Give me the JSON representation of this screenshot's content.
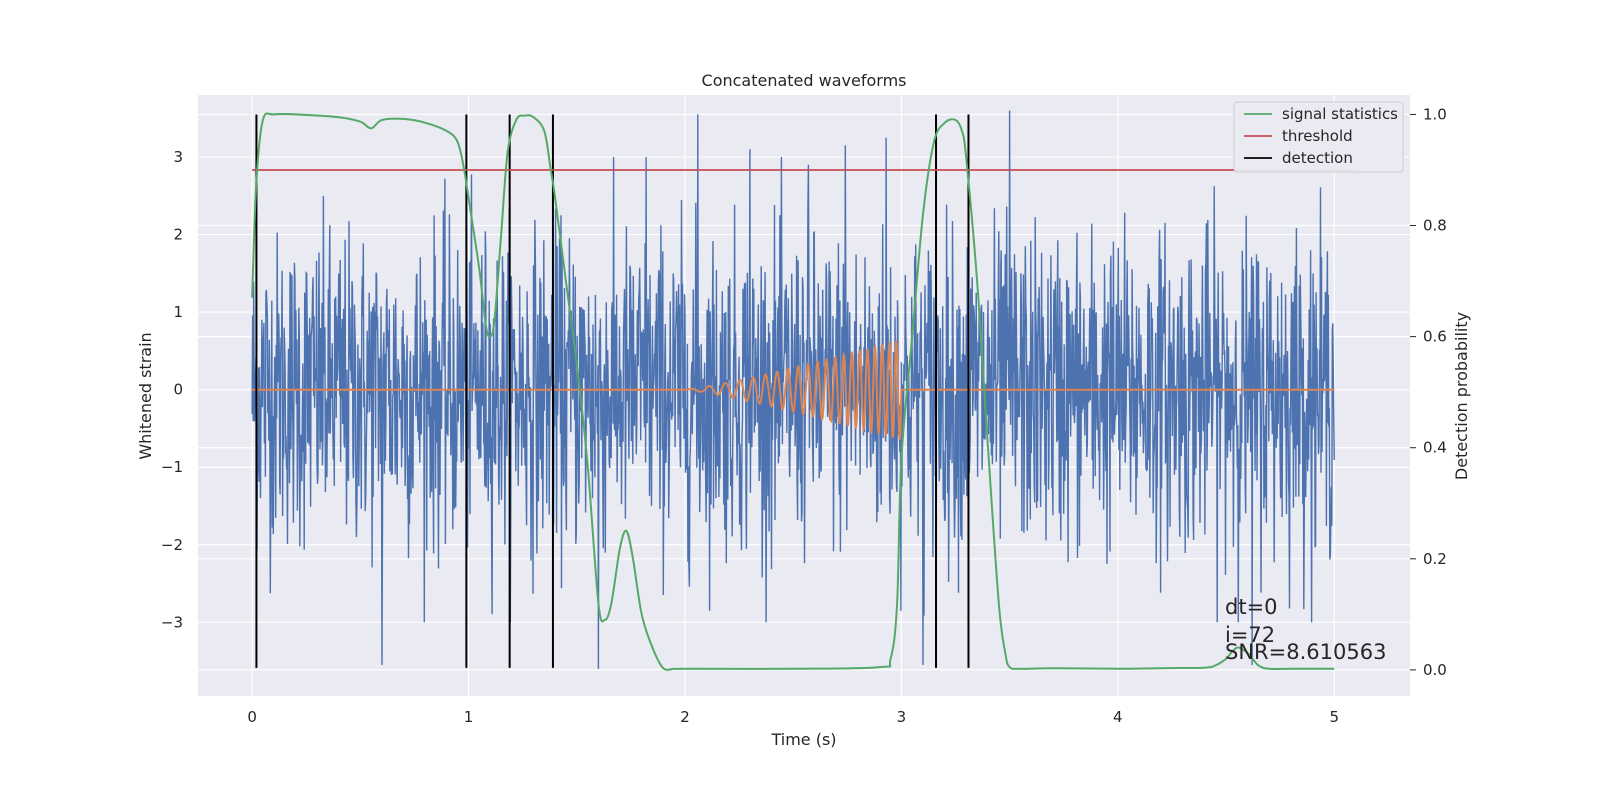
{
  "chart_data": {
    "type": "line",
    "title": "Concatenated waveforms",
    "xlabel": "Time (s)",
    "ylabel": "Whitened strain",
    "y2label": "Detection probability",
    "xlim": [
      -0.25,
      5.35
    ],
    "ylim": [
      -3.95,
      3.8
    ],
    "y2lim": [
      -0.047,
      1.035
    ],
    "x_ticks": [
      0,
      1,
      2,
      3,
      4,
      5
    ],
    "x_tick_labels": [
      "0",
      "1",
      "2",
      "3",
      "4",
      "5"
    ],
    "y_ticks": [
      -3,
      -2,
      -1,
      0,
      1,
      2,
      3
    ],
    "y_tick_labels": [
      "−3",
      "−2",
      "−1",
      "0",
      "1",
      "2",
      "3"
    ],
    "y2_ticks": [
      0.0,
      0.2,
      0.4,
      0.6,
      0.8,
      1.0
    ],
    "y2_tick_labels": [
      "0.0",
      "0.2",
      "0.4",
      "0.6",
      "0.8",
      "1.0"
    ],
    "grid": true,
    "legend_position": "top-right",
    "legend": [
      "signal statistics",
      "threshold",
      "detection"
    ],
    "colors": {
      "strain": "#4c72b0",
      "injection": "#dd8452",
      "signal_statistics": "#55a868",
      "threshold": "#c44e52",
      "detection": "#000000",
      "background": "#eaeaf2",
      "grid": "#ffffff"
    },
    "series": [
      {
        "name": "signal statistics",
        "axis": "right",
        "x": [
          0.0,
          0.02,
          0.05,
          0.1,
          0.2,
          0.4,
          0.5,
          0.55,
          0.6,
          0.7,
          0.8,
          0.9,
          0.95,
          0.98,
          1.0,
          1.05,
          1.08,
          1.1,
          1.12,
          1.15,
          1.18,
          1.22,
          1.26,
          1.3,
          1.35,
          1.38,
          1.4,
          1.45,
          1.5,
          1.55,
          1.6,
          1.63,
          1.66,
          1.7,
          1.73,
          1.76,
          1.8,
          1.85,
          1.9,
          1.95,
          2.0,
          2.5,
          2.9,
          2.95,
          2.98,
          3.0,
          3.05,
          3.1,
          3.15,
          3.2,
          3.25,
          3.28,
          3.3,
          3.35,
          3.4,
          3.45,
          3.48,
          3.5,
          3.55,
          3.7,
          4.0,
          4.2,
          4.4,
          4.45,
          4.5,
          4.55,
          4.6,
          4.65,
          4.7,
          4.8,
          5.0
        ],
        "values": [
          0.67,
          0.88,
          0.99,
          1.0,
          1.0,
          0.995,
          0.987,
          0.975,
          0.99,
          0.992,
          0.985,
          0.97,
          0.95,
          0.9,
          0.85,
          0.72,
          0.62,
          0.6,
          0.63,
          0.78,
          0.93,
          0.99,
          0.998,
          0.995,
          0.97,
          0.9,
          0.85,
          0.7,
          0.55,
          0.37,
          0.12,
          0.09,
          0.12,
          0.22,
          0.25,
          0.2,
          0.1,
          0.04,
          0.003,
          0.002,
          0.002,
          0.002,
          0.005,
          0.02,
          0.12,
          0.38,
          0.6,
          0.82,
          0.95,
          0.985,
          0.99,
          0.97,
          0.92,
          0.7,
          0.4,
          0.12,
          0.03,
          0.005,
          0.002,
          0.003,
          0.002,
          0.003,
          0.004,
          0.008,
          0.02,
          0.04,
          0.03,
          0.008,
          0.002,
          0.002,
          0.002
        ]
      },
      {
        "name": "threshold",
        "axis": "right",
        "x": [
          0.0,
          5.1
        ],
        "values": [
          0.9,
          0.9
        ]
      },
      {
        "name": "detection",
        "axis": "right",
        "type": "vlines",
        "x": [
          0.02,
          0.99,
          1.19,
          1.39,
          3.16,
          3.31
        ],
        "ymin": 0.0,
        "ymax": 1.0
      },
      {
        "name": "",
        "axis": "left",
        "type": "strain",
        "x_range": [
          0,
          5
        ],
        "typical_amplitude": 1.0,
        "extreme_peaks": [
          {
            "x": 0.6,
            "y": -3.55
          },
          {
            "x": 1.6,
            "y": -3.6
          },
          {
            "x": 1.82,
            "y": 3.0
          },
          {
            "x": 2.06,
            "y": 3.55
          },
          {
            "x": 2.3,
            "y": 3.1
          },
          {
            "x": 2.57,
            "y": 2.9
          },
          {
            "x": 2.74,
            "y": 3.15
          },
          {
            "x": 2.93,
            "y": 3.25
          },
          {
            "x": 3.1,
            "y": -3.55
          },
          {
            "x": 3.5,
            "y": 3.6
          },
          {
            "x": 4.62,
            "y": -3.55
          }
        ]
      },
      {
        "name": "",
        "axis": "left",
        "type": "chirp",
        "x_range": [
          0,
          5
        ],
        "chirp_start": 2.0,
        "chirp_end": 3.0,
        "peak_amplitude": 0.65
      }
    ],
    "annotations": {
      "dt": "dt=0",
      "i": "i=72",
      "snr": "SNR=8.610563"
    }
  }
}
